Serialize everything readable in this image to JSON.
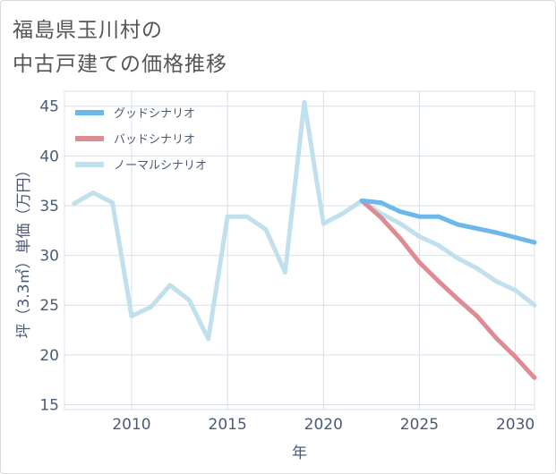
{
  "title": {
    "line1": "福島県玉川村の",
    "line2": "中古戸建ての価格推移"
  },
  "colors": {
    "good": "#6cb8ea",
    "bad": "#dc8c92",
    "normal": "#bfe0ec",
    "axis_text": "#4a5a78",
    "grid": "#d9e0ea"
  },
  "chart_data": {
    "type": "line",
    "xlabel": "年",
    "ylabel": "坪（3.3㎡）単価（万円）",
    "xlim": [
      2006.5,
      2031
    ],
    "ylim": [
      14.5,
      46.5
    ],
    "xticks": [
      2010,
      2015,
      2020,
      2025,
      2030
    ],
    "yticks": [
      15,
      20,
      25,
      30,
      35,
      40,
      45
    ],
    "grid": true,
    "legend_position": "top-left",
    "series": [
      {
        "name": "グッドシナリオ",
        "key": "good",
        "x": [
          2022,
          2023,
          2024,
          2025,
          2026,
          2027,
          2028,
          2029,
          2030,
          2031
        ],
        "y": [
          35.5,
          35.3,
          34.4,
          33.9,
          33.9,
          33.1,
          32.7,
          32.3,
          31.8,
          31.3
        ]
      },
      {
        "name": "バッドシナリオ",
        "key": "bad",
        "x": [
          2022,
          2023,
          2024,
          2025,
          2026,
          2027,
          2028,
          2029,
          2030,
          2031
        ],
        "y": [
          35.5,
          33.8,
          31.7,
          29.3,
          27.4,
          25.6,
          23.9,
          21.7,
          19.8,
          17.7
        ]
      },
      {
        "name": "ノーマルシナリオ",
        "key": "normal",
        "x": [
          2007,
          2008,
          2009,
          2010,
          2011,
          2012,
          2013,
          2014,
          2015,
          2016,
          2017,
          2018,
          2019,
          2020,
          2021,
          2022,
          2023,
          2024,
          2025,
          2026,
          2027,
          2028,
          2029,
          2030,
          2031
        ],
        "y": [
          35.2,
          36.3,
          35.3,
          23.9,
          24.8,
          27.0,
          25.5,
          21.6,
          33.9,
          33.9,
          32.6,
          28.3,
          45.4,
          33.2,
          34.2,
          35.5,
          34.2,
          33.2,
          31.9,
          31.0,
          29.7,
          28.7,
          27.4,
          26.5,
          25.0
        ]
      }
    ]
  }
}
